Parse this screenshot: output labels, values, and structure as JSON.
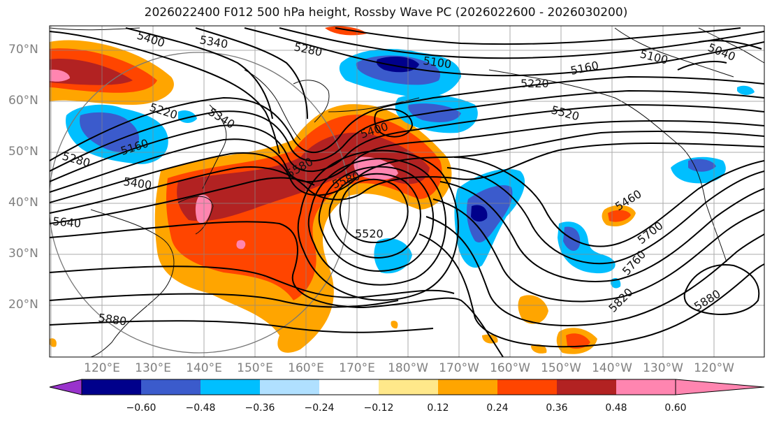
{
  "title": "2026022400 F012 500 hPa height, Rossby Wave PC (2026022600 - 2026030200)",
  "map": {
    "lat_labels": [
      "70°N",
      "60°N",
      "50°N",
      "40°N",
      "30°N",
      "20°N"
    ],
    "lon_labels": [
      "120°E",
      "130°E",
      "140°E",
      "150°E",
      "160°E",
      "170°E",
      "180°W",
      "170°W",
      "160°W",
      "150°W",
      "140°W",
      "130°W",
      "120°W"
    ],
    "contour_labels": [
      "5400",
      "5340",
      "5280",
      "5100",
      "5040",
      "5160",
      "5220",
      "5100",
      "5220",
      "5340",
      "5520",
      "5280",
      "5160",
      "5400",
      "5400",
      "5580",
      "5580",
      "5520",
      "5640",
      "5460",
      "5700",
      "5760",
      "5820",
      "5880",
      "5880"
    ]
  },
  "colorbar": {
    "ticks": [
      "−0.60",
      "−0.48",
      "−0.36",
      "−0.24",
      "−0.12",
      "0.12",
      "0.24",
      "0.36",
      "0.48",
      "0.60"
    ],
    "colors": [
      "#9933cc",
      "#00008b",
      "#3b5bcc",
      "#00bfff",
      "#b0e0ff",
      "#ffffff",
      "#ffe88a",
      "#ffa500",
      "#ff4500",
      "#b22222",
      "#ff85b0"
    ]
  }
}
